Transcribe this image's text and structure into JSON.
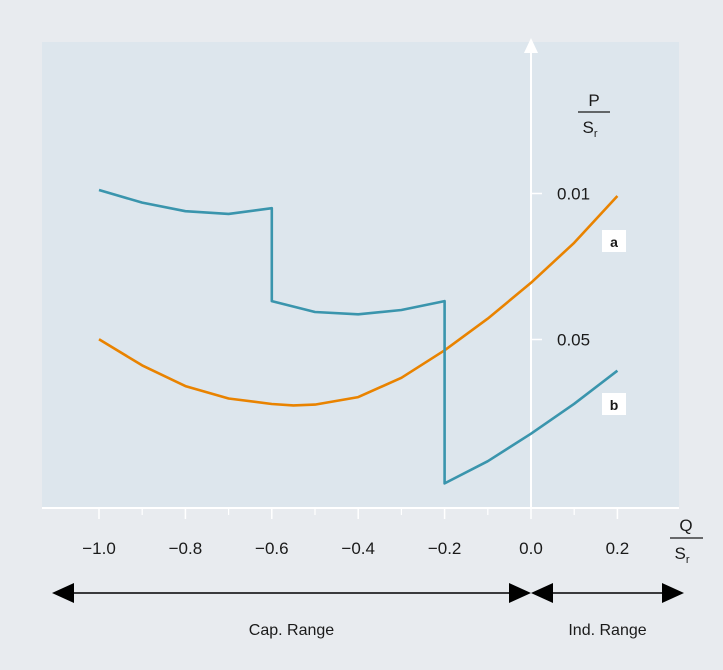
{
  "chart_data": {
    "type": "line",
    "xlabel": {
      "num": "Q",
      "den": "S",
      "sub": "r"
    },
    "ylabel": {
      "num": "P",
      "den": "S",
      "sub": "r"
    },
    "x_ticks": [
      -1.0,
      -0.8,
      -0.6,
      -0.4,
      -0.2,
      0.0,
      0.2
    ],
    "x_tick_labels": [
      "−1.0",
      "−0.8",
      "−0.6",
      "−0.4",
      "−0.2",
      "0.0",
      "0.2"
    ],
    "y_ticks": [
      0.01,
      0.05
    ],
    "y_tick_labels": [
      "0.01",
      "0.05"
    ],
    "series": [
      {
        "name": "a",
        "color": "#e98300",
        "points": [
          [
            -1.0,
            0.052
          ],
          [
            -0.9,
            0.0615
          ],
          [
            -0.8,
            0.069
          ],
          [
            -0.7,
            0.0735
          ],
          [
            -0.6,
            0.0755
          ],
          [
            -0.55,
            0.076
          ],
          [
            -0.5,
            0.0757
          ],
          [
            -0.4,
            0.073
          ],
          [
            -0.3,
            0.066
          ],
          [
            -0.2,
            0.056
          ],
          [
            -0.1,
            0.0445
          ],
          [
            0.0,
            0.0315
          ],
          [
            0.1,
            0.017
          ],
          [
            0.2,
            0.0
          ]
        ]
      },
      {
        "name": "b",
        "color": "#3a95ad",
        "points": [
          [
            -1.0,
            0.0
          ],
          [
            -0.9,
            0.0038
          ],
          [
            -0.8,
            0.0064
          ],
          [
            -0.7,
            0.0072
          ],
          [
            -0.6,
            0.0055
          ],
          [
            -0.6,
            0.0335
          ],
          [
            -0.5,
            0.0368
          ],
          [
            -0.4,
            0.0375
          ],
          [
            -0.3,
            0.0362
          ],
          [
            -0.2,
            0.0335
          ],
          [
            -0.2,
            0.0885
          ],
          [
            -0.1,
            0.0818
          ],
          [
            0.0,
            0.0735
          ],
          [
            0.1,
            0.0645
          ],
          [
            0.2,
            0.0545
          ]
        ]
      }
    ],
    "ranges": [
      {
        "label": "Cap. Range",
        "from": -1.0,
        "to": 0.0
      },
      {
        "label": "Ind. Range",
        "from": 0.0,
        "to": 0.2
      }
    ]
  }
}
